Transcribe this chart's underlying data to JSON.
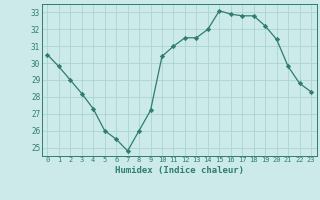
{
  "x": [
    0,
    1,
    2,
    3,
    4,
    5,
    6,
    7,
    8,
    9,
    10,
    11,
    12,
    13,
    14,
    15,
    16,
    17,
    18,
    19,
    20,
    21,
    22,
    23
  ],
  "y": [
    30.5,
    29.8,
    29.0,
    28.2,
    27.3,
    26.0,
    25.5,
    24.8,
    26.0,
    27.2,
    30.4,
    31.0,
    31.5,
    31.5,
    32.0,
    33.1,
    32.9,
    32.8,
    32.8,
    32.2,
    31.4,
    29.8,
    28.8,
    28.3
  ],
  "line_color": "#2e7d6e",
  "marker": "D",
  "marker_size": 2.2,
  "bg_color": "#cdeaeb",
  "grid_color": "#aad4d4",
  "xlabel": "Humidex (Indice chaleur)",
  "ylim": [
    24.5,
    33.5
  ],
  "yticks": [
    25,
    26,
    27,
    28,
    29,
    30,
    31,
    32,
    33
  ],
  "xticks": [
    0,
    1,
    2,
    3,
    4,
    5,
    6,
    7,
    8,
    9,
    10,
    11,
    12,
    13,
    14,
    15,
    16,
    17,
    18,
    19,
    20,
    21,
    22,
    23
  ],
  "axis_color": "#2e7d6e",
  "tick_color": "#2e7d6e"
}
